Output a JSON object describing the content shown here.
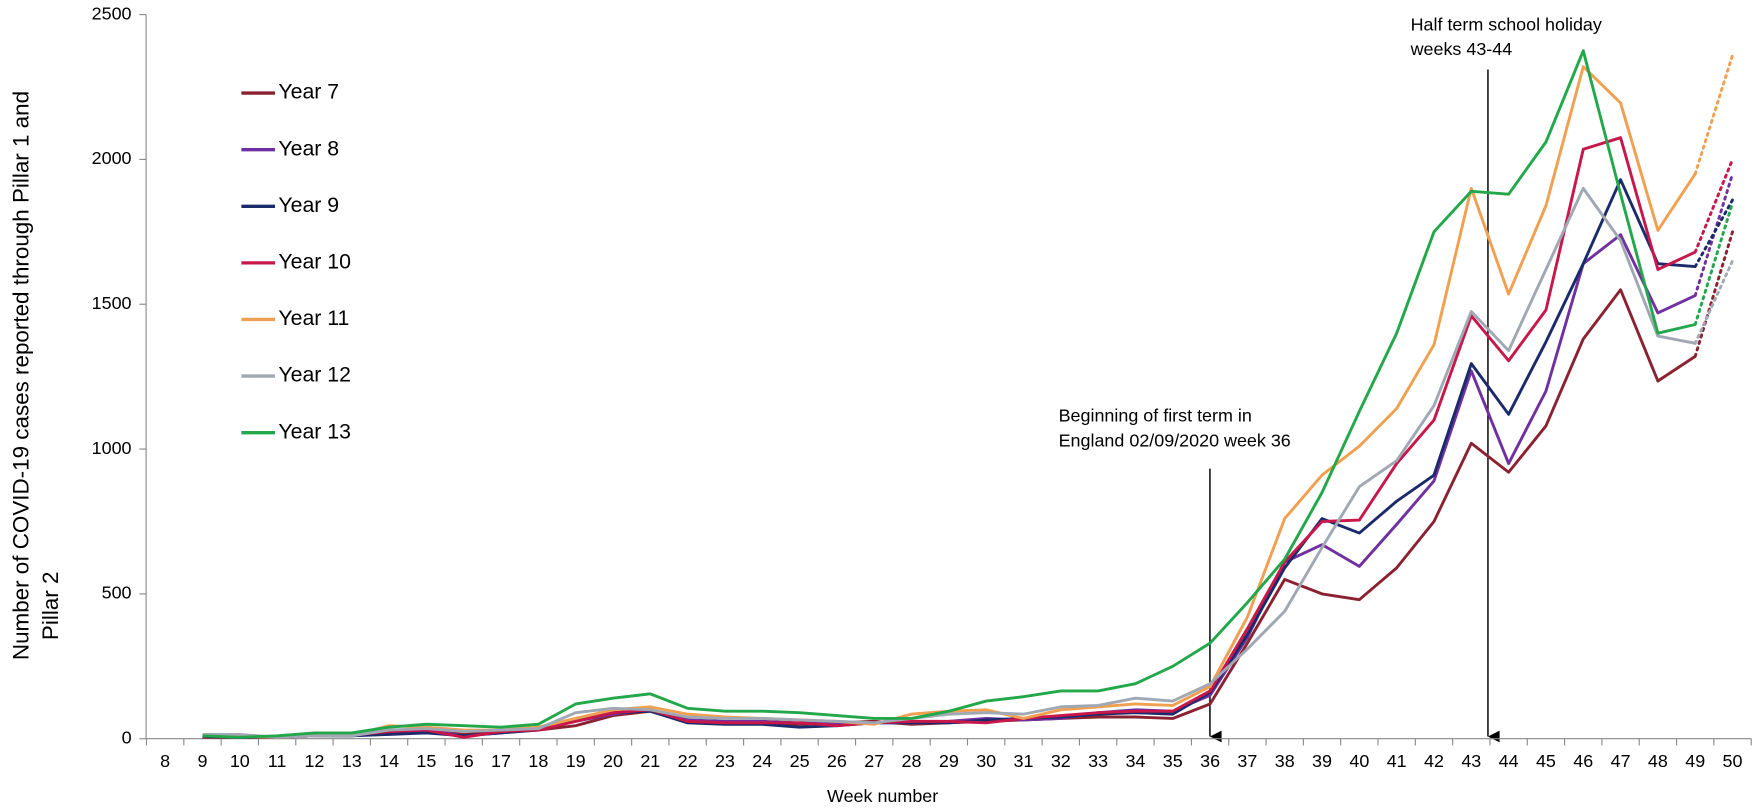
{
  "chart_data": {
    "type": "line",
    "y_title_lines": [
      "Number of COVID-19 cases reported through Pillar 1 and",
      "Pillar 2"
    ],
    "x_title": "Week number",
    "categories": [
      "8",
      "9",
      "10",
      "11",
      "12",
      "13",
      "14",
      "15",
      "16",
      "17",
      "18",
      "19",
      "20",
      "21",
      "22",
      "23",
      "24",
      "25",
      "26",
      "27",
      "28",
      "29",
      "30",
      "31",
      "32",
      "33",
      "34",
      "35",
      "36",
      "37",
      "38",
      "39",
      "40",
      "41",
      "42",
      "43",
      "44",
      "45",
      "46",
      "47",
      "48",
      "49",
      "50"
    ],
    "ylim": [
      0,
      2500
    ],
    "yticks": [
      0,
      500,
      1000,
      1500,
      2000,
      2500
    ],
    "last_segment_style": "dotted",
    "legend": "upper left",
    "series": [
      {
        "name": "Year 7",
        "color": "#8b2232",
        "values": [
          null,
          5,
          5,
          5,
          10,
          10,
          25,
          30,
          15,
          25,
          30,
          45,
          80,
          95,
          60,
          55,
          55,
          50,
          55,
          60,
          50,
          55,
          60,
          65,
          70,
          75,
          75,
          70,
          120,
          330,
          550,
          500,
          480,
          590,
          750,
          1020,
          920,
          1080,
          1380,
          1550,
          1235,
          1320,
          1750
        ]
      },
      {
        "name": "Year 8",
        "color": "#7030a0",
        "values": [
          null,
          10,
          8,
          5,
          10,
          10,
          20,
          30,
          10,
          20,
          35,
          60,
          85,
          100,
          65,
          60,
          60,
          55,
          55,
          55,
          55,
          60,
          70,
          65,
          70,
          90,
          100,
          95,
          150,
          350,
          610,
          670,
          595,
          740,
          890,
          1270,
          950,
          1200,
          1640,
          1740,
          1470,
          1530,
          1950
        ]
      },
      {
        "name": "Year 9",
        "color": "#1b2a6b",
        "values": [
          null,
          8,
          5,
          5,
          10,
          10,
          15,
          20,
          10,
          20,
          30,
          70,
          90,
          95,
          55,
          50,
          50,
          40,
          45,
          55,
          55,
          55,
          65,
          70,
          75,
          85,
          90,
          85,
          160,
          360,
          590,
          760,
          710,
          820,
          910,
          1295,
          1120,
          1370,
          1640,
          1930,
          1640,
          1630,
          1860
        ]
      },
      {
        "name": "Year 10",
        "color": "#c8174a",
        "values": [
          null,
          10,
          8,
          5,
          10,
          12,
          25,
          30,
          5,
          25,
          30,
          60,
          90,
          100,
          60,
          55,
          55,
          55,
          45,
          55,
          60,
          60,
          55,
          70,
          80,
          90,
          95,
          95,
          165,
          380,
          610,
          750,
          755,
          950,
          1100,
          1460,
          1305,
          1480,
          2035,
          2075,
          1620,
          1680,
          2000
        ]
      },
      {
        "name": "Year 11",
        "color": "#f0a050",
        "values": [
          null,
          10,
          8,
          5,
          10,
          12,
          45,
          40,
          30,
          30,
          40,
          70,
          100,
          110,
          85,
          75,
          70,
          65,
          60,
          50,
          85,
          95,
          100,
          70,
          100,
          110,
          120,
          115,
          180,
          420,
          760,
          910,
          1010,
          1140,
          1360,
          1900,
          1535,
          1840,
          2320,
          2195,
          1755,
          1950,
          2360
        ]
      },
      {
        "name": "Year 12",
        "color": "#a0a8b4",
        "values": [
          null,
          15,
          15,
          5,
          10,
          10,
          30,
          35,
          25,
          30,
          35,
          90,
          105,
          100,
          75,
          70,
          70,
          65,
          60,
          55,
          70,
          85,
          90,
          85,
          110,
          115,
          140,
          130,
          190,
          310,
          440,
          660,
          870,
          960,
          1150,
          1475,
          1340,
          1620,
          1900,
          1720,
          1390,
          1365,
          1650
        ]
      },
      {
        "name": "Year 13",
        "color": "#22a84a",
        "values": [
          null,
          10,
          5,
          10,
          20,
          20,
          40,
          50,
          45,
          40,
          50,
          120,
          140,
          155,
          105,
          95,
          95,
          90,
          80,
          70,
          70,
          95,
          130,
          145,
          165,
          165,
          190,
          250,
          330,
          470,
          620,
          850,
          1130,
          1400,
          1750,
          1890,
          1880,
          2060,
          2375,
          1880,
          1400,
          1430,
          1850
        ]
      }
    ],
    "annotations": [
      {
        "lines": [
          "Beginning of first term in",
          "England 02/09/2020 week 36"
        ]
      },
      {
        "lines": [
          "Half term school holiday",
          "weeks 43-44"
        ]
      }
    ]
  }
}
